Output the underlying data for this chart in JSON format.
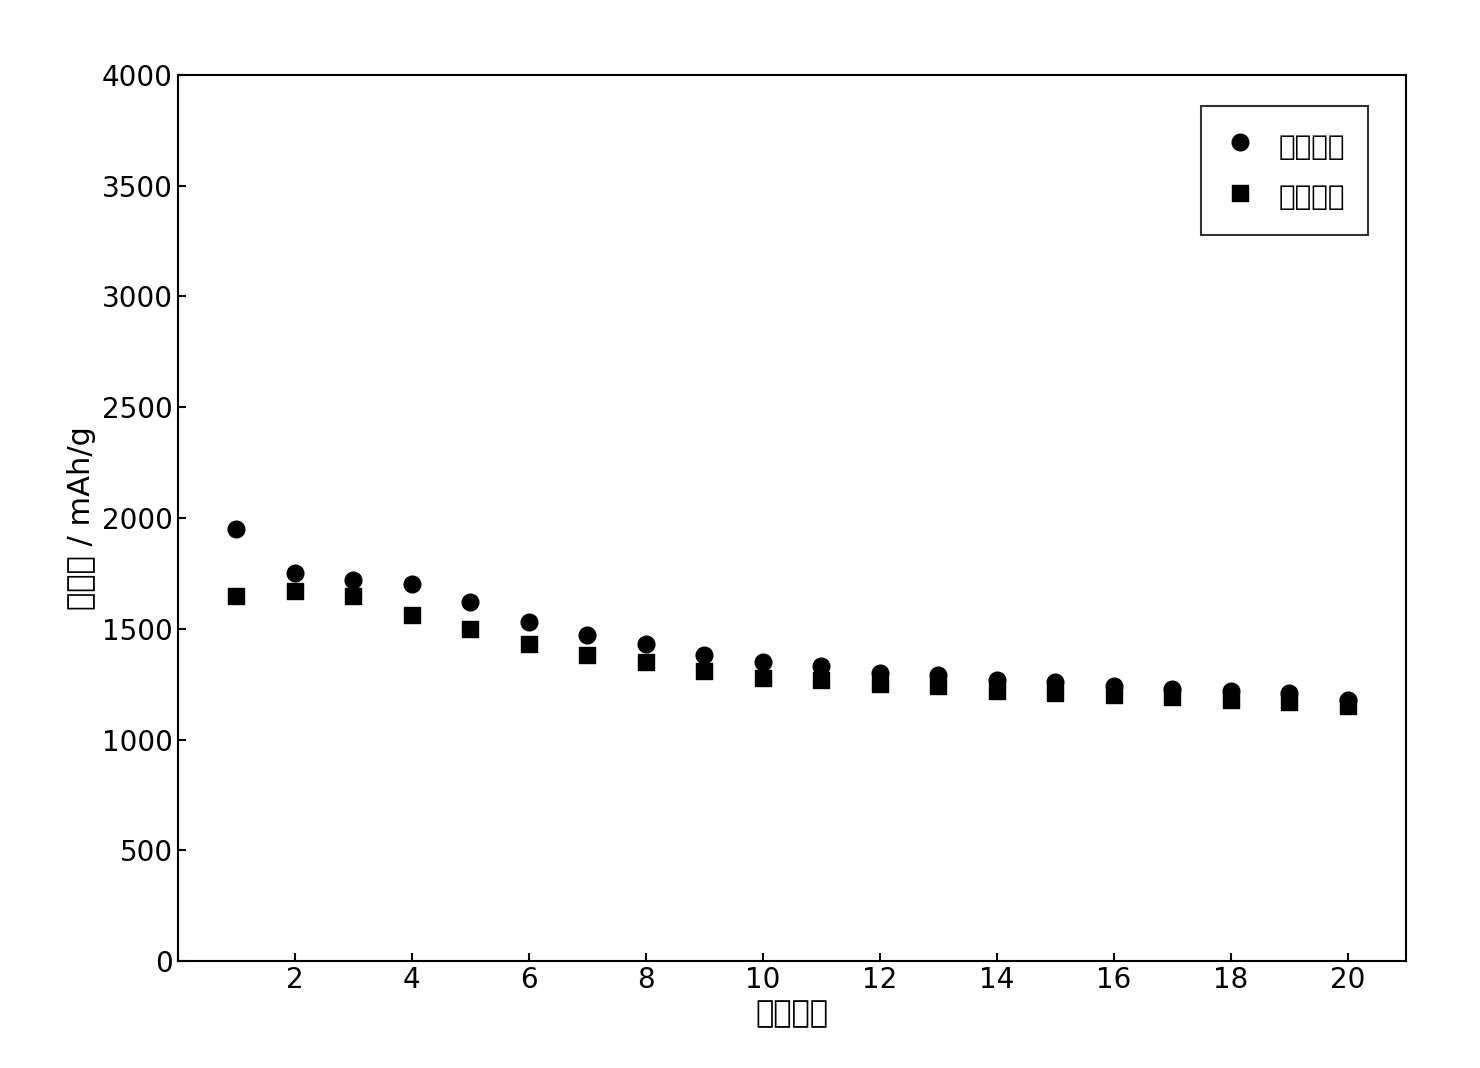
{
  "discharge_capacity": {
    "x": [
      1,
      2,
      3,
      4,
      5,
      6,
      7,
      8,
      9,
      10,
      11,
      12,
      13,
      14,
      15,
      16,
      17,
      18,
      19,
      20
    ],
    "y": [
      1950,
      1750,
      1720,
      1700,
      1620,
      1530,
      1470,
      1430,
      1380,
      1350,
      1330,
      1300,
      1290,
      1270,
      1260,
      1240,
      1230,
      1220,
      1210,
      1180
    ]
  },
  "charge_capacity": {
    "x": [
      1,
      2,
      3,
      4,
      5,
      6,
      7,
      8,
      9,
      10,
      11,
      12,
      13,
      14,
      15,
      16,
      17,
      18,
      19,
      20
    ],
    "y": [
      1650,
      1670,
      1650,
      1560,
      1500,
      1430,
      1380,
      1350,
      1310,
      1280,
      1270,
      1250,
      1240,
      1220,
      1210,
      1200,
      1190,
      1180,
      1170,
      1150
    ]
  },
  "ylabel": "比容量 / mAh/g",
  "xlabel": "循环次数",
  "legend_discharge": "放电容量",
  "legend_charge": "充电容量",
  "xlim": [
    0,
    21
  ],
  "ylim": [
    0,
    4000
  ],
  "yticks": [
    0,
    500,
    1000,
    1500,
    2000,
    2500,
    3000,
    3500,
    4000
  ],
  "xticks": [
    0,
    2,
    4,
    6,
    8,
    10,
    12,
    14,
    16,
    18,
    20
  ],
  "marker_discharge": "o",
  "marker_charge": "s",
  "marker_color": "#000000",
  "marker_size": 12,
  "legend_fontsize": 20,
  "axis_fontsize": 22,
  "tick_fontsize": 20,
  "background_color": "#ffffff",
  "outer_background": "#e8e8e8"
}
